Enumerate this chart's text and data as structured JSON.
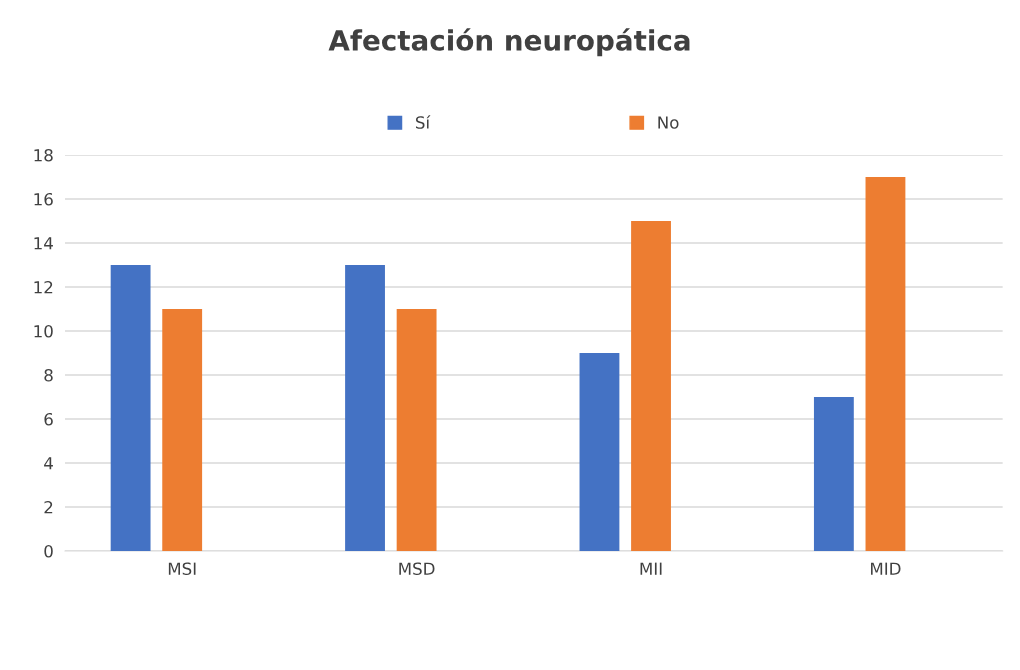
{
  "chart_data": {
    "type": "bar",
    "title": "Afectación neuropática",
    "categories": [
      "MSI",
      "MSD",
      "MII",
      "MID"
    ],
    "series": [
      {
        "name": "Sí",
        "color": "#4472c4",
        "values": [
          13,
          13,
          9,
          7
        ]
      },
      {
        "name": "No",
        "color": "#ed7d31",
        "values": [
          11,
          11,
          15,
          17
        ]
      }
    ],
    "ylim": [
      0,
      18
    ],
    "yticks": [
      0,
      2,
      4,
      6,
      8,
      10,
      12,
      14,
      16,
      18
    ],
    "grid": "y",
    "legend": "top"
  }
}
